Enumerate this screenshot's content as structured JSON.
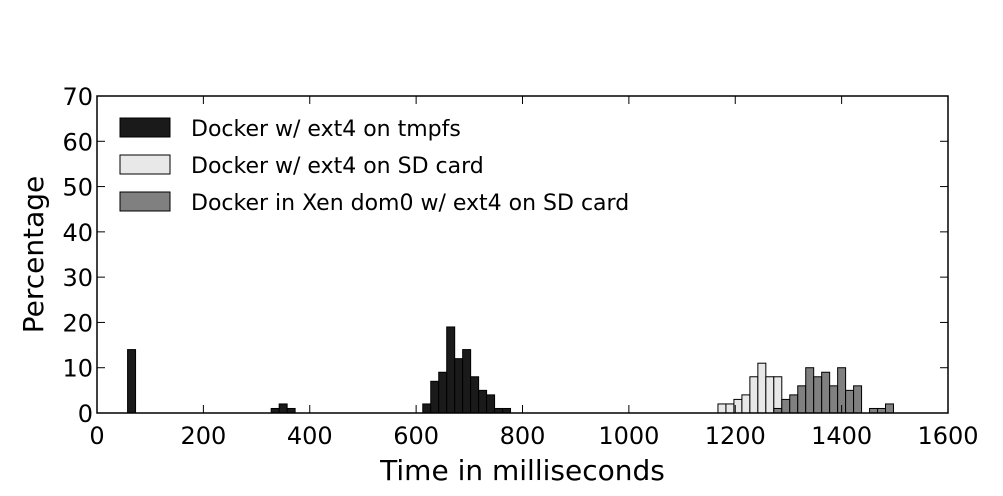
{
  "chart_data": {
    "type": "bar",
    "title": "",
    "xlabel": "Time in milliseconds",
    "ylabel": "Percentage",
    "xlim": [
      0,
      1600
    ],
    "ylim": [
      0,
      70
    ],
    "xticks": [
      0,
      200,
      400,
      600,
      800,
      1000,
      1200,
      1400,
      1600
    ],
    "yticks": [
      0,
      10,
      20,
      30,
      40,
      50,
      60,
      70
    ],
    "bin_width": 15,
    "grid": false,
    "legend_position": "top-left",
    "series": [
      {
        "name": "Docker w/ ext4 on tmpfs",
        "color": "#1a1a1a",
        "x": [
          65,
          335,
          350,
          365,
          620,
          635,
          650,
          665,
          680,
          695,
          710,
          725,
          740,
          755,
          770
        ],
        "values": [
          14,
          1,
          2,
          1,
          2,
          7,
          9,
          19,
          12,
          14,
          8,
          5,
          4,
          1,
          1
        ]
      },
      {
        "name": "Docker w/ ext4 on SD card",
        "color": "#e8e8e8",
        "x": [
          1175,
          1190,
          1205,
          1220,
          1235,
          1250,
          1265,
          1280
        ],
        "values": [
          2,
          2,
          3,
          4,
          8,
          11,
          8,
          8
        ]
      },
      {
        "name": "Docker in Xen dom0 w/ ext4 on SD card",
        "color": "#808080",
        "x": [
          1280,
          1295,
          1310,
          1325,
          1340,
          1355,
          1370,
          1385,
          1400,
          1415,
          1430,
          1445,
          1460,
          1475,
          1490
        ],
        "values": [
          1,
          3,
          4,
          6,
          10,
          8,
          9,
          6,
          10,
          5,
          6,
          0,
          1,
          1,
          2
        ]
      }
    ]
  }
}
